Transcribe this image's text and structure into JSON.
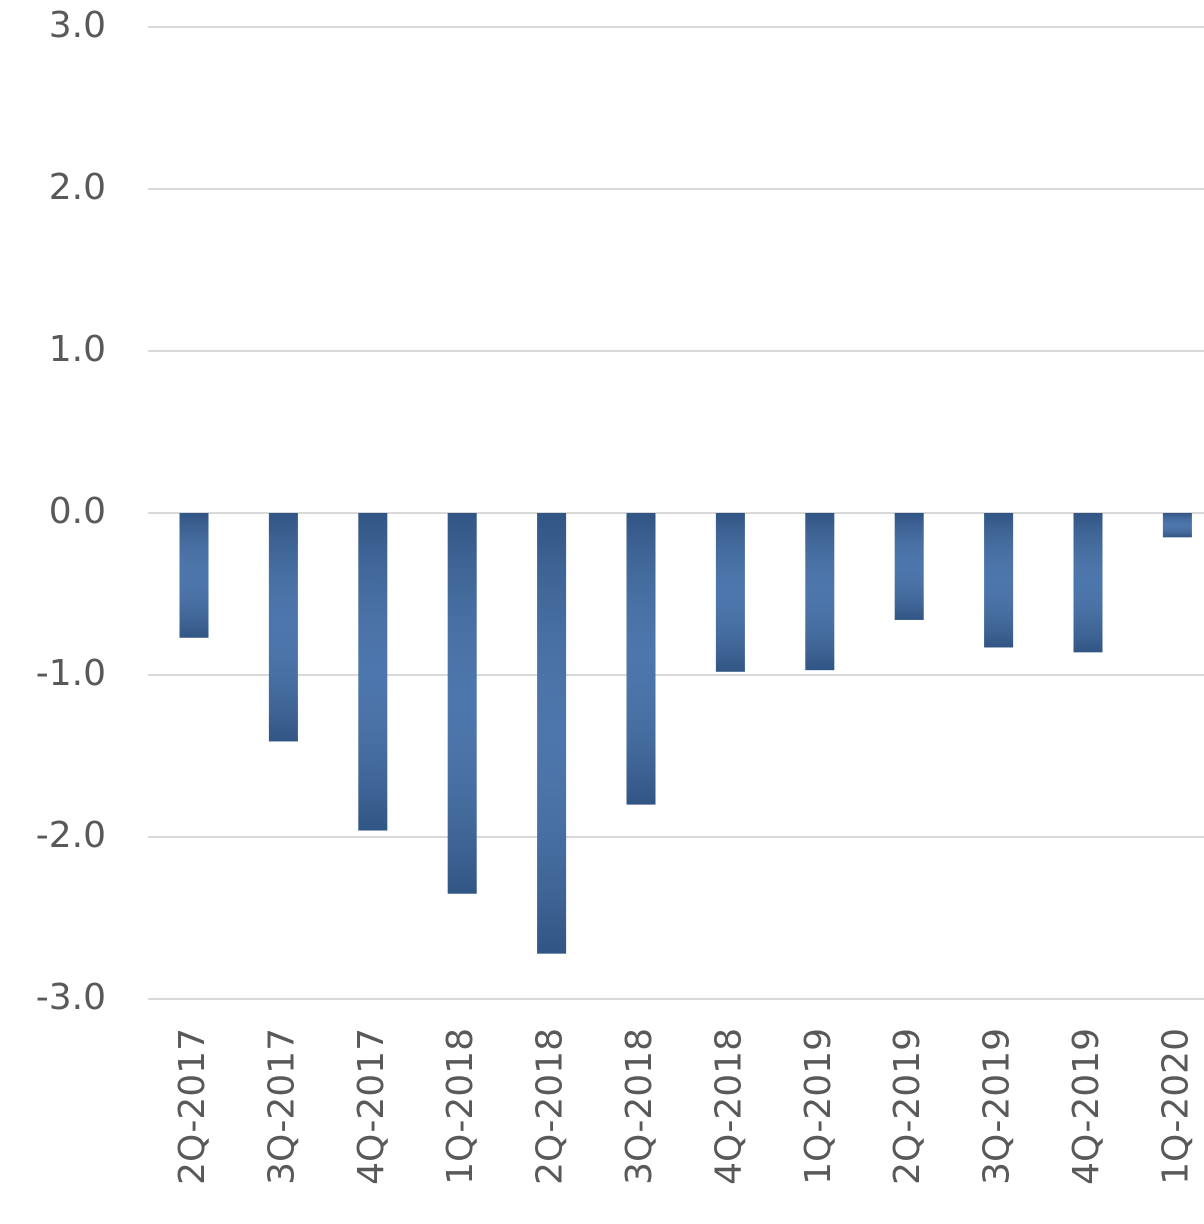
{
  "chart_data": {
    "type": "bar",
    "categories": [
      "2Q-2017",
      "3Q-2017",
      "4Q-2017",
      "1Q-2018",
      "2Q-2018",
      "3Q-2018",
      "4Q-2018",
      "1Q-2019",
      "2Q-2019",
      "3Q-2019",
      "4Q-2019",
      "1Q-2020"
    ],
    "values": [
      -0.77,
      -1.41,
      -1.96,
      -2.35,
      -2.72,
      -1.8,
      -0.98,
      -0.97,
      -0.66,
      -0.83,
      -0.86,
      -0.15
    ],
    "color": "#3d6aa5",
    "ylim": [
      -3,
      3
    ],
    "yticks": [
      {
        "value": 3,
        "label": "3.0"
      },
      {
        "value": 2,
        "label": "2.0"
      },
      {
        "value": 1,
        "label": "1.0"
      },
      {
        "value": 0,
        "label": "0.0"
      },
      {
        "value": -1,
        "label": "-1.0"
      },
      {
        "value": -2,
        "label": "-2.0"
      },
      {
        "value": -3,
        "label": "-3.0"
      }
    ],
    "grid": true
  }
}
